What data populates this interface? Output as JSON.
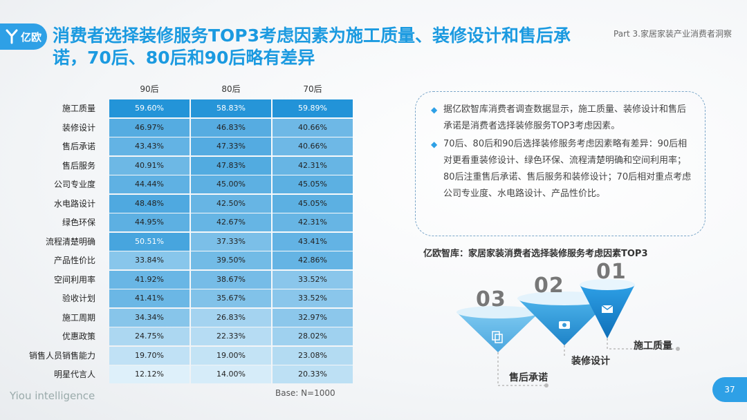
{
  "header": {
    "logo_text": "亿欧",
    "title": "消费者选择装修服务TOP3考虑因素为施工质量、装修设计和售后承诺，70后、80后和90后略有差异",
    "part_label": "Part 3.家居家装产业消费者洞察"
  },
  "table": {
    "columns": [
      "90后",
      "80后",
      "70后"
    ],
    "rows": [
      {
        "label": "施工质量",
        "values": [
          "59.60%",
          "58.83%",
          "59.89%"
        ]
      },
      {
        "label": "装修设计",
        "values": [
          "46.97%",
          "46.83%",
          "40.66%"
        ]
      },
      {
        "label": "售后承诺",
        "values": [
          "43.43%",
          "47.33%",
          "40.66%"
        ]
      },
      {
        "label": "售后服务",
        "values": [
          "40.91%",
          "47.83%",
          "42.31%"
        ]
      },
      {
        "label": "公司专业度",
        "values": [
          "44.44%",
          "45.00%",
          "45.05%"
        ]
      },
      {
        "label": "水电路设计",
        "values": [
          "48.48%",
          "42.50%",
          "45.05%"
        ]
      },
      {
        "label": "绿色环保",
        "values": [
          "44.95%",
          "42.67%",
          "42.31%"
        ]
      },
      {
        "label": "流程清楚明确",
        "values": [
          "50.51%",
          "37.33%",
          "43.41%"
        ]
      },
      {
        "label": "产品性价比",
        "values": [
          "33.84%",
          "39.50%",
          "42.86%"
        ]
      },
      {
        "label": "空间利用率",
        "values": [
          "41.92%",
          "38.67%",
          "33.52%"
        ]
      },
      {
        "label": "验收计划",
        "values": [
          "41.41%",
          "35.67%",
          "33.52%"
        ]
      },
      {
        "label": "施工周期",
        "values": [
          "34.34%",
          "26.83%",
          "32.97%"
        ]
      },
      {
        "label": "优惠政策",
        "values": [
          "24.75%",
          "22.33%",
          "28.02%"
        ]
      },
      {
        "label": "销售人员销售能力",
        "values": [
          "19.70%",
          "19.00%",
          "23.08%"
        ]
      },
      {
        "label": "明星代言人",
        "values": [
          "12.12%",
          "14.00%",
          "20.33%"
        ]
      }
    ],
    "base_note": "Base: N=1000"
  },
  "callout": {
    "bullets": [
      "据亿欧智库消费者调查数据显示，施工质量、装修设计和售后承诺是消费者选择装修服务TOP3考虑因素。",
      "70后、80后和90后选择装修服务考虑因素略有差异：90后相对更看重装修设计、绿色环保、流程清楚明确和空间利用率；80后注重售后承诺、售后服务和装修设计；70后相对重点考虑公司专业度、水电路设计、产品性价比。"
    ]
  },
  "infographic": {
    "subtitle": "亿欧智库：家居家装消费者选择装修服务考虑因素TOP3",
    "items": [
      {
        "rank": "01",
        "label": "施工质量",
        "icon": "envelope-icon"
      },
      {
        "rank": "02",
        "label": "装修设计",
        "icon": "camera-icon"
      },
      {
        "rank": "03",
        "label": "售后承诺",
        "icon": "copy-icon"
      }
    ]
  },
  "footer": {
    "brand": "Yiou intelligence",
    "page": "37"
  },
  "colors": {
    "accent": "#2ea0e6",
    "title": "#1b9ae0"
  }
}
